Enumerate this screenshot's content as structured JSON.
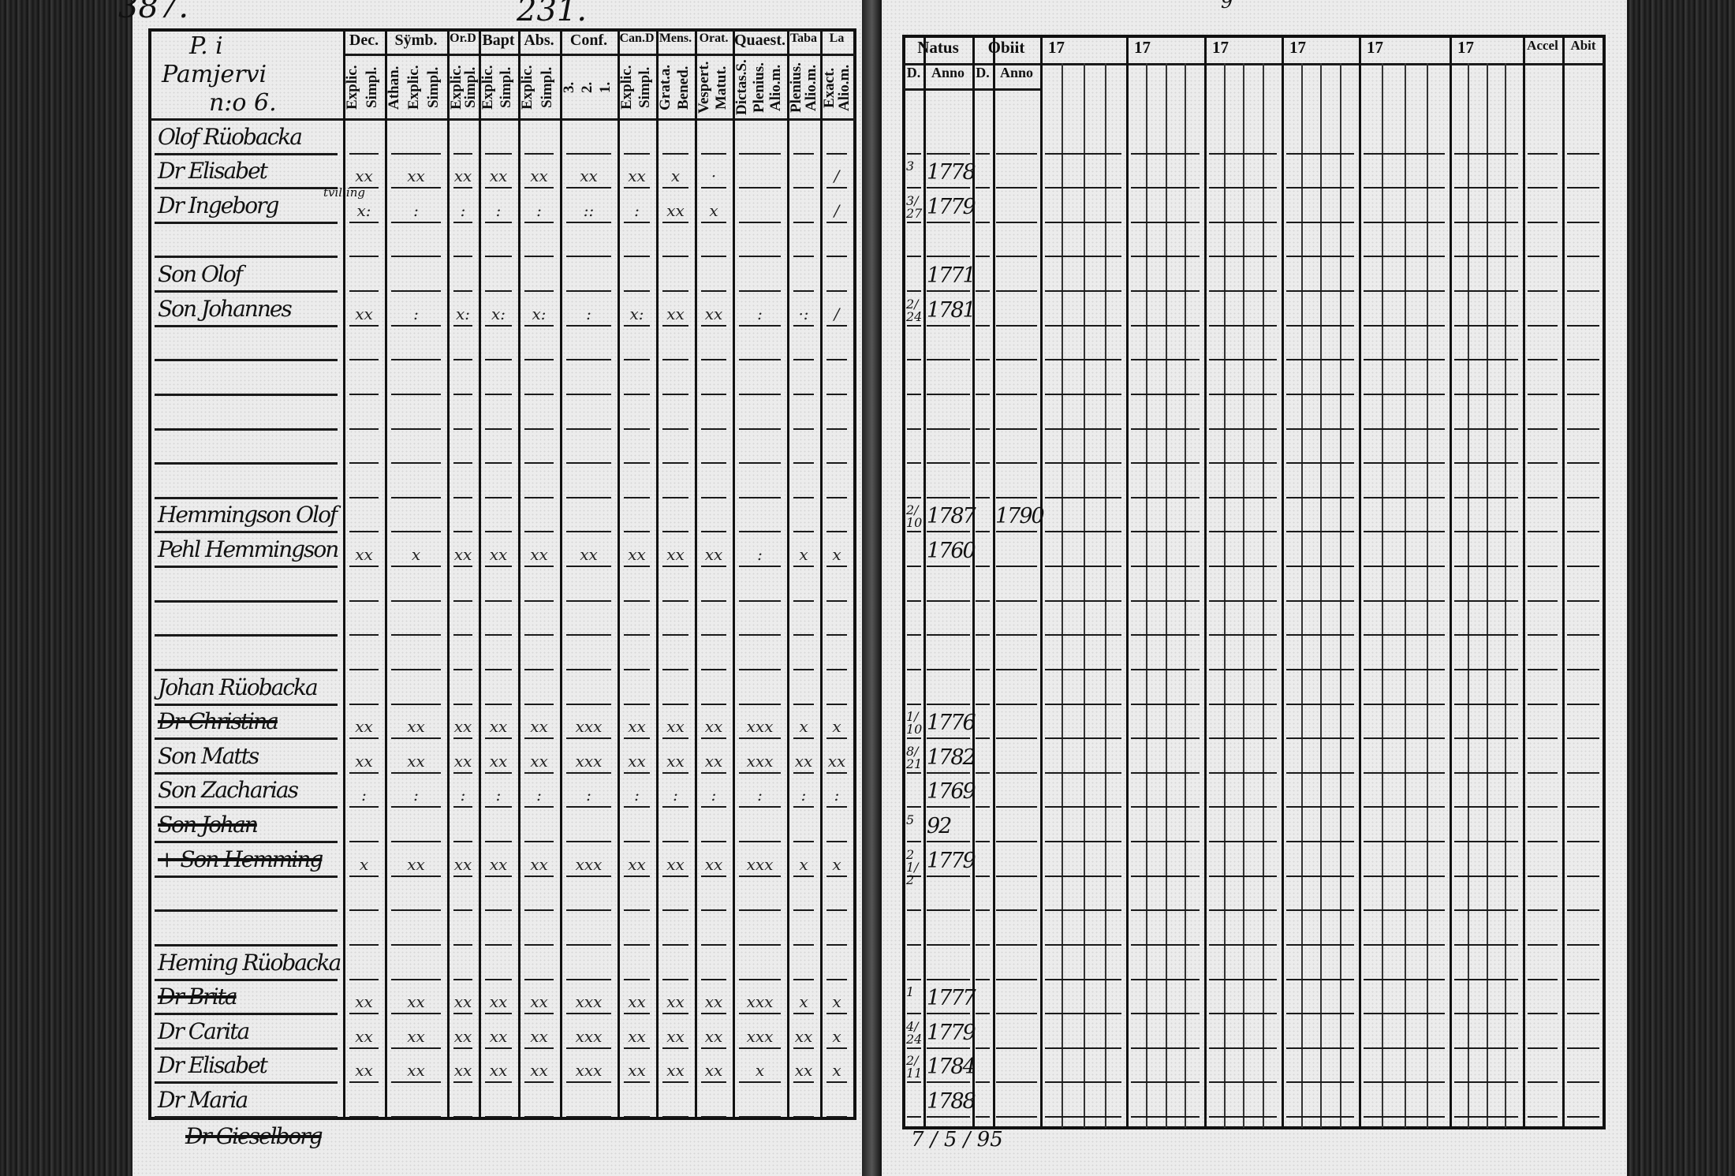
{
  "page_numbers": {
    "left_corner": "387.",
    "left_top": "231.",
    "right_top": "9"
  },
  "left": {
    "title_cell": [
      "P. i",
      "Pamjervi",
      "n:o 6."
    ],
    "columns": [
      {
        "head": "Dec.",
        "sub": [
          "Explic.",
          "Simpl."
        ]
      },
      {
        "head": "Sÿmb.",
        "sub": [
          "Athan.",
          "Explic.",
          "Simpl."
        ]
      },
      {
        "head": "Or.D",
        "sub": [
          "Explic.",
          "Simpl."
        ]
      },
      {
        "head": "Bapt",
        "sub": [
          "Explic.",
          "Simpl."
        ]
      },
      {
        "head": "Abs.",
        "sub": [
          "Explic.",
          "Simpl."
        ]
      },
      {
        "head": "Conf.",
        "sub": [
          "3.",
          "2.",
          "1."
        ]
      },
      {
        "head": "Can.D",
        "sub": [
          "Explic.",
          "Simpl."
        ]
      },
      {
        "head": "Mens.",
        "sub": [
          "Grat.a.",
          "Bened."
        ]
      },
      {
        "head": "Orat.",
        "sub": [
          "Vespert.",
          "Matut."
        ]
      },
      {
        "head": "Quaest.",
        "sub": [
          "Dictas.S.",
          "Plenius.",
          "Alio.m."
        ]
      },
      {
        "head": "Taba",
        "sub": [
          "Plenius.",
          "Alio.m."
        ]
      },
      {
        "head": "La",
        "sub": [
          "Exact.",
          "Alio.m."
        ]
      }
    ]
  },
  "right": {
    "groups": [
      {
        "head": "Natus",
        "sub": [
          "D.",
          "Anno"
        ]
      },
      {
        "head": "Obiit",
        "sub": [
          "D.",
          "Anno"
        ]
      }
    ],
    "year_heads": [
      "17",
      "17",
      "17",
      "17",
      "17",
      "17"
    ],
    "tail_heads": [
      "Accel",
      "Abit"
    ]
  },
  "rows": [
    {
      "name": "Olof Rüobacka",
      "marks": [],
      "natus_d": "",
      "natus": "",
      "obiit_d": "",
      "obiit": ""
    },
    {
      "name": "Dr Elisabet",
      "marks": [
        "xx",
        "xx",
        "xx",
        "xx",
        "xx",
        "xx",
        "xx",
        "x",
        "·",
        "",
        "",
        "/"
      ],
      "natus_d": "3",
      "natus": "1778",
      "obiit_d": "",
      "obiit": ""
    },
    {
      "name": "Dr Ingeborg",
      "note": "tvilling",
      "marks": [
        "x:",
        ":",
        ":",
        ":",
        ":",
        "::",
        ":",
        "xx",
        "x",
        "",
        "",
        "/"
      ],
      "natus_d": "3/27",
      "natus": "1779",
      "obiit_d": "",
      "obiit": ""
    },
    {
      "name": "",
      "marks": []
    },
    {
      "name": "Son Olof",
      "marks": [],
      "natus_d": "",
      "natus": "1771",
      "obiit_d": "",
      "obiit": ""
    },
    {
      "name": "Son Johannes",
      "marks": [
        "xx",
        ":",
        "x:",
        "x:",
        "x:",
        ":",
        "x:",
        "xx",
        "xx",
        ":",
        "·:",
        "/"
      ],
      "natus_d": "2/24",
      "natus": "1781",
      "obiit_d": "",
      "obiit": ""
    },
    {
      "name": "",
      "marks": []
    },
    {
      "name": "",
      "marks": []
    },
    {
      "name": "",
      "marks": []
    },
    {
      "name": "",
      "marks": []
    },
    {
      "name": "",
      "marks": []
    },
    {
      "name": "Hemmingson Olof",
      "marks": [],
      "natus_d": "2/10",
      "natus": "1787",
      "obiit_d": "",
      "obiit": "1790"
    },
    {
      "name": "Pehl Hemmingson",
      "marks": [
        "xx",
        "x",
        "xx",
        "xx",
        "xx",
        "xx",
        "xx",
        "xx",
        "xx",
        ":",
        "x",
        "x"
      ],
      "natus_d": "",
      "natus": "1760",
      "obiit_d": "",
      "obiit": ""
    },
    {
      "name": "",
      "marks": []
    },
    {
      "name": "",
      "marks": []
    },
    {
      "name": "",
      "marks": []
    },
    {
      "name": "Johan Rüobacka",
      "marks": []
    },
    {
      "name": "Dr Christina",
      "struck": true,
      "marks": [
        "xx",
        "xx",
        "xx",
        "xx",
        "xx",
        "xxx",
        "xx",
        "xx",
        "xx",
        "xxx",
        "x",
        "x"
      ],
      "natus_d": "1/10",
      "natus": "1776",
      "obiit_d": "",
      "obiit": ""
    },
    {
      "name": "Son Matts",
      "marks": [
        "xx",
        "xx",
        "xx",
        "xx",
        "xx",
        "xxx",
        "xx",
        "xx",
        "xx",
        "xxx",
        "xx",
        "xx"
      ],
      "natus_d": "8/21",
      "natus": "1782",
      "obiit_d": "",
      "obiit": ""
    },
    {
      "name": "Son Zacharias",
      "marks": [
        ":",
        ":",
        ":",
        ":",
        ":",
        ":",
        ":",
        ":",
        ":",
        ":",
        ":",
        ":"
      ],
      "natus_d": "",
      "natus": "1769",
      "obiit_d": "",
      "obiit": ""
    },
    {
      "name": "Son Johan",
      "struck": true,
      "marks": [],
      "natus_d": "5",
      "natus": "92",
      "obiit_d": "",
      "obiit": ""
    },
    {
      "name": "+ Son Hemming",
      "struck": true,
      "marks": [
        "x",
        "xx",
        "xx",
        "xx",
        "xx",
        "xxx",
        "xx",
        "xx",
        "xx",
        "xxx",
        "x",
        "x"
      ],
      "natus_d": "21/2",
      "natus": "1779",
      "obiit_d": "",
      "obiit": ""
    },
    {
      "name": "",
      "marks": []
    },
    {
      "name": "",
      "marks": []
    },
    {
      "name": "Heming Rüobacka",
      "marks": []
    },
    {
      "name": "Dr Brita",
      "struck": true,
      "marks": [
        "xx",
        "xx",
        "xx",
        "xx",
        "xx",
        "xxx",
        "xx",
        "xx",
        "xx",
        "xxx",
        "x",
        "x"
      ],
      "natus_d": "1",
      "natus": "1777",
      "obiit_d": "",
      "obiit": ""
    },
    {
      "name": "Dr Carita",
      "marks": [
        "xx",
        "xx",
        "xx",
        "xx",
        "xx",
        "xxx",
        "xx",
        "xx",
        "xx",
        "xxx",
        "xx",
        "x"
      ],
      "natus_d": "4/24",
      "natus": "1779",
      "obiit_d": "",
      "obiit": ""
    },
    {
      "name": "Dr Elisabet",
      "marks": [
        "xx",
        "xx",
        "xx",
        "xx",
        "xx",
        "xxx",
        "xx",
        "xx",
        "xx",
        "x",
        "xx",
        "x"
      ],
      "natus_d": "2/11",
      "natus": "1784",
      "obiit_d": "",
      "obiit": ""
    },
    {
      "name": "Dr Maria",
      "marks": [],
      "natus_d": "",
      "natus": "1788",
      "obiit_d": "",
      "obiit": ""
    }
  ],
  "below_table": {
    "left_struck_name": "Dr Gieselborg",
    "right_note": "7 / 5 / 95"
  }
}
